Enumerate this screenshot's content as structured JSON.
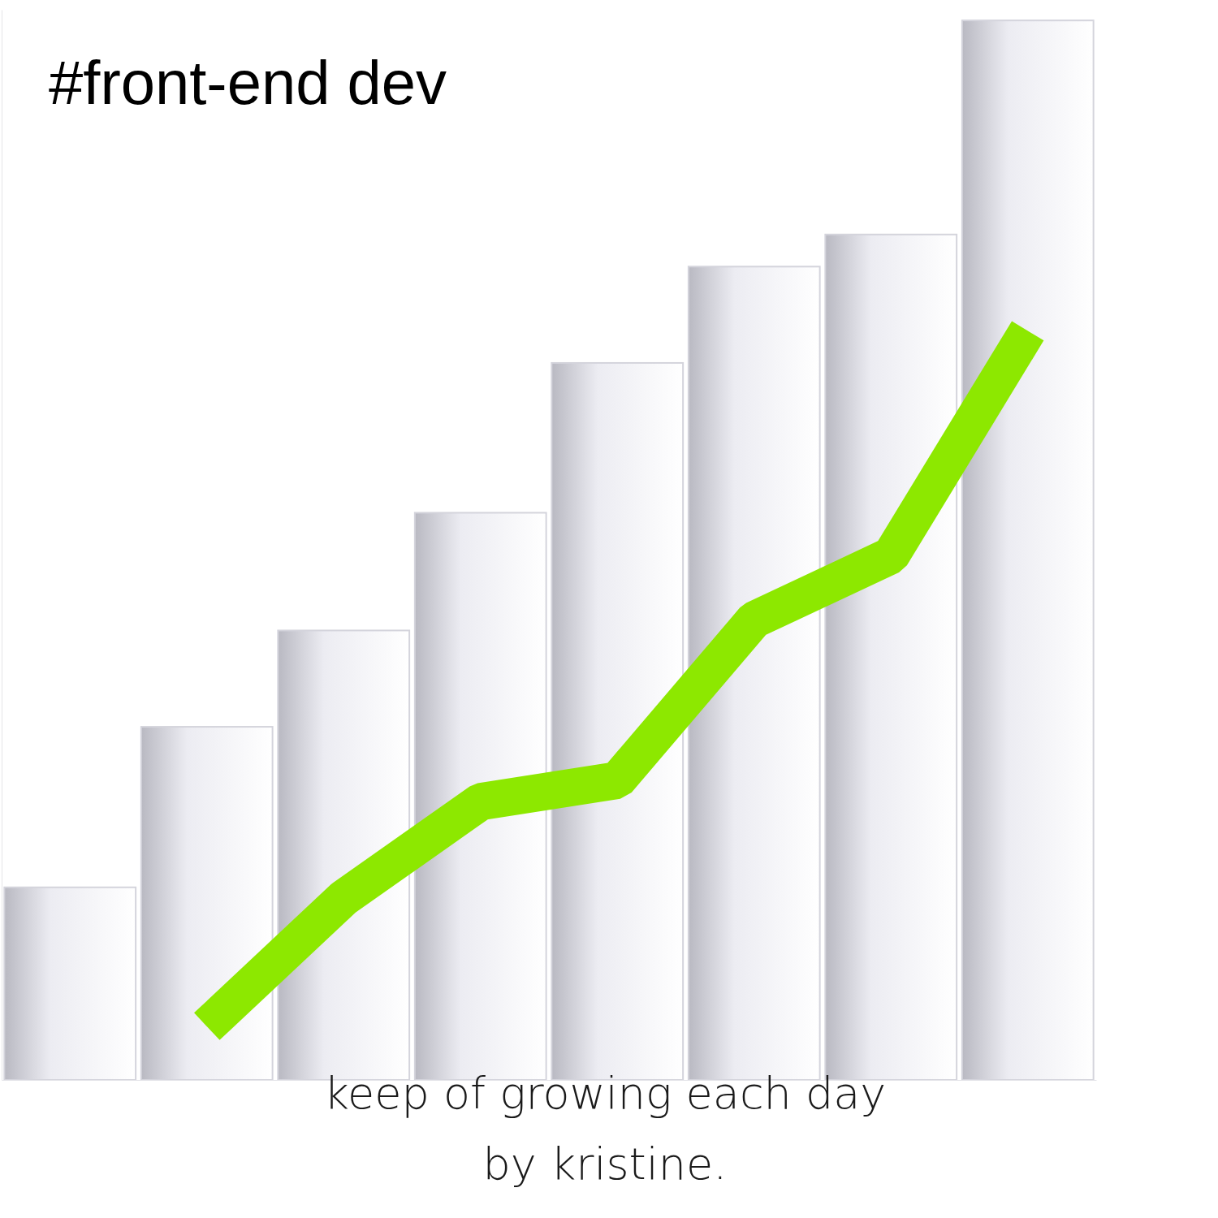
{
  "chart_data": {
    "type": "bar",
    "title": "#front-end dev",
    "annotations": [
      "keep of growing each day",
      "by kristine."
    ],
    "categories": [
      null,
      null,
      null,
      null,
      null,
      null,
      null,
      null
    ],
    "series": [
      {
        "type": "bar",
        "color": "#ececf2",
        "values": [
          18,
          33,
          42,
          53,
          67,
          76,
          79,
          99
        ]
      },
      {
        "type": "line",
        "color": "#8de800",
        "values": [
          null,
          5,
          17,
          26,
          28,
          43,
          49,
          70
        ]
      }
    ],
    "ylim": [
      0,
      100
    ],
    "grid": false,
    "tick_labels": false
  }
}
